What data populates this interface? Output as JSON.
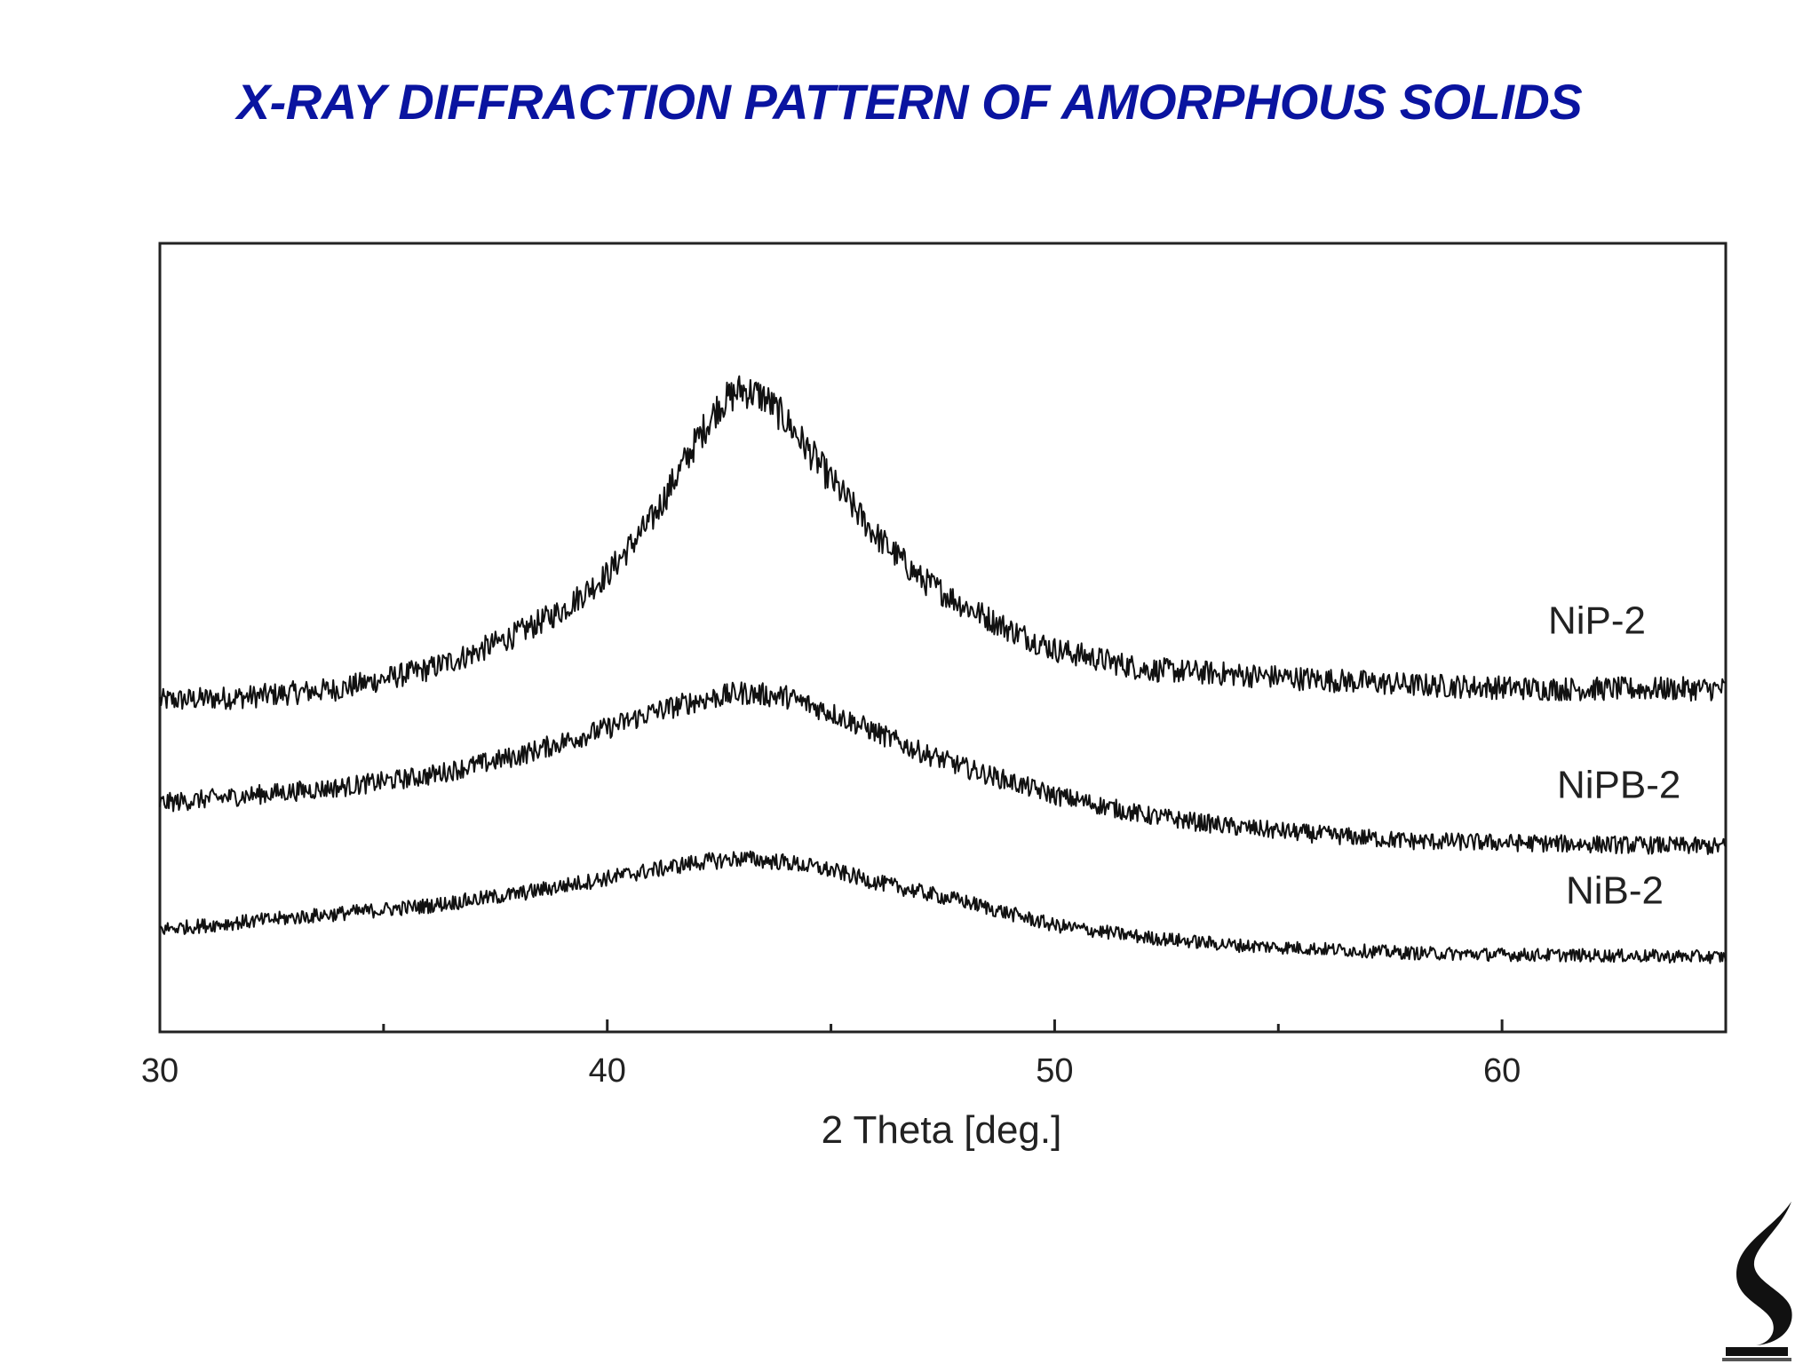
{
  "slide": {
    "title": "X-RAY DIFFRACTION PATTERN OF AMORPHOUS SOLIDS"
  },
  "colors": {
    "title": "#0a14a0",
    "trace": "#111111",
    "axis": "#222222"
  },
  "chart_data": {
    "type": "line",
    "title": "",
    "xlabel": "2 Theta [deg.]",
    "ylabel": "",
    "xlim": [
      30,
      65
    ],
    "ylim": [
      0,
      1
    ],
    "xticks": [
      30,
      40,
      50,
      60
    ],
    "grid": false,
    "legend": "labels placed at right end of each curve",
    "series": [
      {
        "name": "NiP-2",
        "x": [
          30,
          32,
          34,
          36,
          37,
          38,
          39,
          40,
          41,
          42,
          42.5,
          43,
          43.5,
          44,
          45,
          46,
          47,
          48,
          49,
          50,
          52,
          55,
          58,
          61,
          65
        ],
        "y": [
          0.42,
          0.425,
          0.435,
          0.46,
          0.48,
          0.505,
          0.535,
          0.58,
          0.65,
          0.75,
          0.795,
          0.815,
          0.805,
          0.775,
          0.7,
          0.63,
          0.575,
          0.54,
          0.51,
          0.485,
          0.46,
          0.45,
          0.44,
          0.435,
          0.435
        ]
      },
      {
        "name": "NiPB-2",
        "x": [
          30,
          32,
          34,
          36,
          38,
          40,
          41,
          42,
          43,
          44,
          45,
          46,
          47,
          48,
          50,
          52,
          54,
          56,
          58,
          60,
          62,
          65
        ],
        "y": [
          0.29,
          0.3,
          0.31,
          0.325,
          0.35,
          0.385,
          0.405,
          0.42,
          0.43,
          0.425,
          0.405,
          0.38,
          0.355,
          0.335,
          0.3,
          0.275,
          0.26,
          0.25,
          0.242,
          0.24,
          0.238,
          0.235
        ]
      },
      {
        "name": "NiB-2",
        "x": [
          30,
          32,
          34,
          36,
          38,
          40,
          41,
          42,
          43,
          44,
          45,
          46,
          48,
          50,
          52,
          54,
          56,
          58,
          60,
          62,
          65
        ],
        "y": [
          0.13,
          0.14,
          0.15,
          0.16,
          0.175,
          0.195,
          0.205,
          0.215,
          0.22,
          0.215,
          0.205,
          0.19,
          0.165,
          0.135,
          0.12,
          0.11,
          0.105,
          0.1,
          0.098,
          0.097,
          0.095
        ]
      }
    ]
  }
}
